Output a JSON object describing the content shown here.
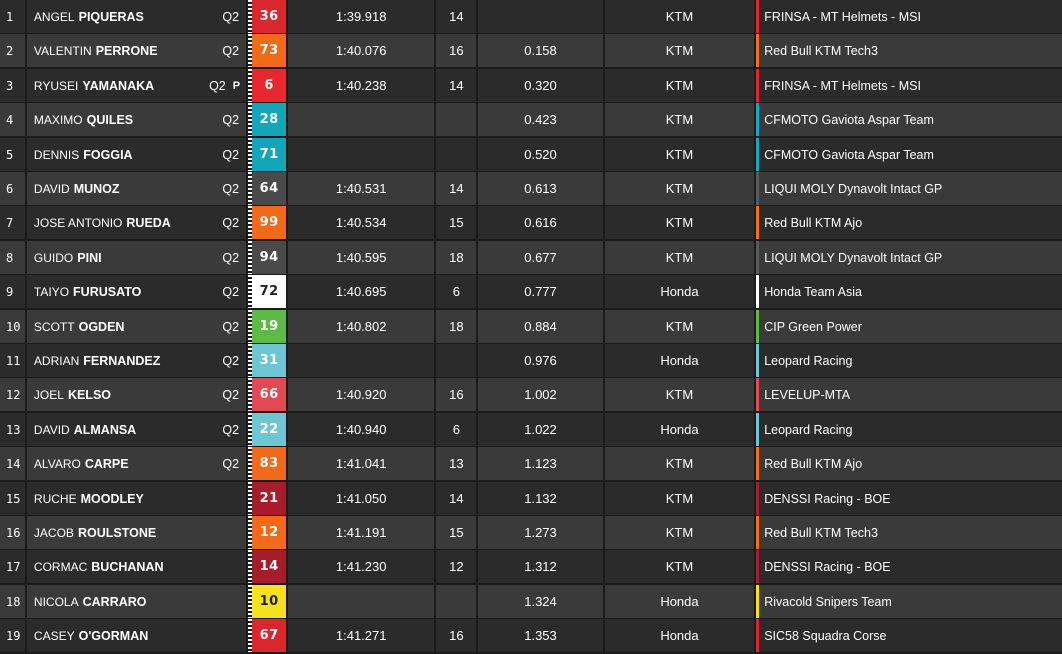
{
  "rows": [
    {
      "pos": "1",
      "first": "ANGEL",
      "last": "PIQUERAS",
      "session": "Q2",
      "flag": "",
      "number": "36",
      "num_bg": "#d9262f",
      "num_fg": "#ffffff",
      "time": "1:39.918",
      "laps": "14",
      "gap": "",
      "bike": "KTM",
      "team": "FRINSA - MT Helmets - MSI",
      "team_color": "#e2242c"
    },
    {
      "pos": "2",
      "first": "VALENTIN",
      "last": "PERRONE",
      "session": "Q2",
      "flag": "",
      "number": "73",
      "num_bg": "#f06a1a",
      "num_fg": "#ffffff",
      "time": "1:40.076",
      "laps": "16",
      "gap": "0.158",
      "bike": "KTM",
      "team": "Red Bull KTM Tech3",
      "team_color": "#f36c20"
    },
    {
      "pos": "3",
      "first": "RYUSEI",
      "last": "YAMANAKA",
      "session": "Q2",
      "flag": "P",
      "number": "6",
      "num_bg": "#e8272f",
      "num_fg": "#ffffff",
      "time": "1:40.238",
      "laps": "14",
      "gap": "0.320",
      "bike": "KTM",
      "team": "FRINSA - MT Helmets - MSI",
      "team_color": "#e2242c"
    },
    {
      "pos": "4",
      "first": "MAXIMO",
      "last": "QUILES",
      "session": "Q2",
      "flag": "",
      "number": "28",
      "num_bg": "#15a5b8",
      "num_fg": "#ffffff",
      "time": "",
      "laps": "",
      "gap": "0.423",
      "bike": "KTM",
      "team": "CFMOTO Gaviota Aspar Team",
      "team_color": "#1aa7bd"
    },
    {
      "pos": "5",
      "first": "DENNIS",
      "last": "FOGGIA",
      "session": "Q2",
      "flag": "",
      "number": "71",
      "num_bg": "#15a5b8",
      "num_fg": "#ffffff",
      "time": "",
      "laps": "",
      "gap": "0.520",
      "bike": "KTM",
      "team": "CFMOTO Gaviota Aspar Team",
      "team_color": "#1aa7bd"
    },
    {
      "pos": "6",
      "first": "DAVID",
      "last": "MUNOZ",
      "session": "Q2",
      "flag": "",
      "number": "64",
      "num_bg": "#4a4a4a",
      "num_fg": "#ffffff",
      "time": "1:40.531",
      "laps": "14",
      "gap": "0.613",
      "bike": "KTM",
      "team": "LIQUI MOLY Dynavolt Intact GP",
      "team_color": "#5a5a5a"
    },
    {
      "pos": "7",
      "first": "JOSE ANTONIO",
      "last": "RUEDA",
      "session": "Q2",
      "flag": "",
      "number": "99",
      "num_bg": "#f06a1a",
      "num_fg": "#ffffff",
      "time": "1:40.534",
      "laps": "15",
      "gap": "0.616",
      "bike": "KTM",
      "team": "Red Bull KTM Ajo",
      "team_color": "#f36c20"
    },
    {
      "pos": "8",
      "first": "GUIDO",
      "last": "PINI",
      "session": "Q2",
      "flag": "",
      "number": "94",
      "num_bg": "#4a4a4a",
      "num_fg": "#ffffff",
      "time": "1:40.595",
      "laps": "18",
      "gap": "0.677",
      "bike": "KTM",
      "team": "LIQUI MOLY Dynavolt Intact GP",
      "team_color": "#5a5a5a"
    },
    {
      "pos": "9",
      "first": "TAIYO",
      "last": "FURUSATO",
      "session": "Q2",
      "flag": "",
      "number": "72",
      "num_bg": "#ffffff",
      "num_fg": "#222222",
      "time": "1:40.695",
      "laps": "6",
      "gap": "0.777",
      "bike": "Honda",
      "team": "Honda Team Asia",
      "team_color": "#ffffff"
    },
    {
      "pos": "10",
      "first": "SCOTT",
      "last": "OGDEN",
      "session": "Q2",
      "flag": "",
      "number": "19",
      "num_bg": "#5dbb45",
      "num_fg": "#ffffff",
      "time": "1:40.802",
      "laps": "18",
      "gap": "0.884",
      "bike": "KTM",
      "team": "CIP Green Power",
      "team_color": "#5dbb45"
    },
    {
      "pos": "11",
      "first": "ADRIAN",
      "last": "FERNANDEZ",
      "session": "Q2",
      "flag": "",
      "number": "31",
      "num_bg": "#6ec6d4",
      "num_fg": "#ffffff",
      "time": "",
      "laps": "",
      "gap": "0.976",
      "bike": "Honda",
      "team": "Leopard Racing",
      "team_color": "#6ec6d4"
    },
    {
      "pos": "12",
      "first": "JOEL",
      "last": "KELSO",
      "session": "Q2",
      "flag": "",
      "number": "66",
      "num_bg": "#e04a55",
      "num_fg": "#ffffff",
      "time": "1:40.920",
      "laps": "16",
      "gap": "1.002",
      "bike": "KTM",
      "team": "LEVELUP-MTA",
      "team_color": "#e04a55"
    },
    {
      "pos": "13",
      "first": "DAVID",
      "last": "ALMANSA",
      "session": "Q2",
      "flag": "",
      "number": "22",
      "num_bg": "#6ec6d4",
      "num_fg": "#ffffff",
      "time": "1:40.940",
      "laps": "6",
      "gap": "1.022",
      "bike": "Honda",
      "team": "Leopard Racing",
      "team_color": "#6ec6d4"
    },
    {
      "pos": "14",
      "first": "ALVARO",
      "last": "CARPE",
      "session": "Q2",
      "flag": "",
      "number": "83",
      "num_bg": "#f06a1a",
      "num_fg": "#ffffff",
      "time": "1:41.041",
      "laps": "13",
      "gap": "1.123",
      "bike": "KTM",
      "team": "Red Bull KTM Ajo",
      "team_color": "#f36c20"
    },
    {
      "pos": "15",
      "first": "RUCHE",
      "last": "MOODLEY",
      "session": "",
      "flag": "",
      "number": "21",
      "num_bg": "#a51d2a",
      "num_fg": "#ffffff",
      "time": "1:41.050",
      "laps": "14",
      "gap": "1.132",
      "bike": "KTM",
      "team": "DENSSI Racing - BOE",
      "team_color": "#a51d2a"
    },
    {
      "pos": "16",
      "first": "JACOB",
      "last": "ROULSTONE",
      "session": "",
      "flag": "",
      "number": "12",
      "num_bg": "#f06a1a",
      "num_fg": "#ffffff",
      "time": "1:41.191",
      "laps": "15",
      "gap": "1.273",
      "bike": "KTM",
      "team": "Red Bull KTM Tech3",
      "team_color": "#f36c20"
    },
    {
      "pos": "17",
      "first": "CORMAC",
      "last": "BUCHANAN",
      "session": "",
      "flag": "",
      "number": "14",
      "num_bg": "#a51d2a",
      "num_fg": "#ffffff",
      "time": "1:41.230",
      "laps": "12",
      "gap": "1.312",
      "bike": "KTM",
      "team": "DENSSI Racing - BOE",
      "team_color": "#a51d2a"
    },
    {
      "pos": "18",
      "first": "NICOLA",
      "last": "CARRARO",
      "session": "",
      "flag": "",
      "number": "10",
      "num_bg": "#f5e11c",
      "num_fg": "#222222",
      "time": "",
      "laps": "",
      "gap": "1.324",
      "bike": "Honda",
      "team": "Rivacold Snipers Team",
      "team_color": "#f5e11c"
    },
    {
      "pos": "19",
      "first": "CASEY",
      "last": "O'GORMAN",
      "session": "",
      "flag": "",
      "number": "67",
      "num_bg": "#d9262f",
      "num_fg": "#ffffff",
      "time": "1:41.271",
      "laps": "16",
      "gap": "1.353",
      "bike": "Honda",
      "team": "SIC58 Squadra Corse",
      "team_color": "#d9262f"
    }
  ]
}
